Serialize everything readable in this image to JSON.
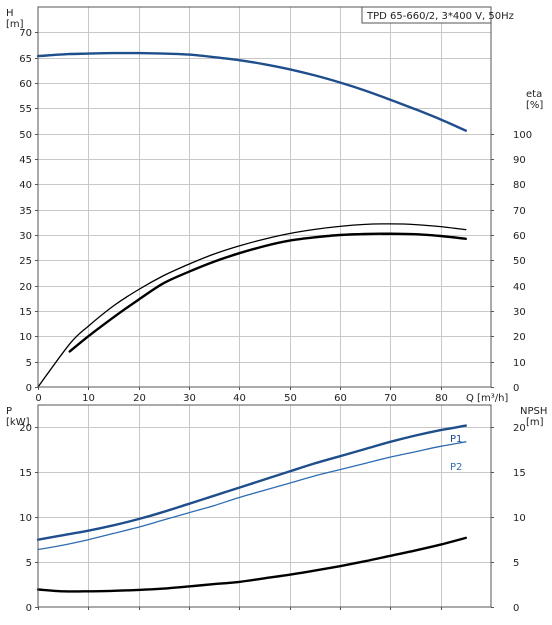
{
  "chart_data": [
    {
      "type": "line",
      "title": "TPD 65-660/2, 3*400 V, 50Hz",
      "xlabel": "Q [m³/h]",
      "ylabel_left": [
        "H",
        "[m]"
      ],
      "ylabel_right": [
        "eta",
        "[%]"
      ],
      "xlim": [
        0,
        90
      ],
      "x_ticks": [
        "0",
        "10",
        "20",
        "30",
        "40",
        "50",
        "60",
        "70",
        "80"
      ],
      "ylim_left": [
        0,
        75
      ],
      "y_ticks_left": [
        "0",
        "5",
        "10",
        "15",
        "20",
        "25",
        "30",
        "35",
        "40",
        "45",
        "50",
        "55",
        "60",
        "65",
        "70"
      ],
      "ylim_right": [
        0,
        150
      ],
      "y_ticks_right": [
        "0",
        "10",
        "20",
        "30",
        "40",
        "50",
        "60",
        "70",
        "80",
        "90",
        "100"
      ],
      "grid": true,
      "series": [
        {
          "color": "#1f4e8c",
          "axis": "left",
          "x": [
            0,
            6,
            10,
            15,
            20,
            25,
            30,
            35,
            40,
            45,
            50,
            55,
            60,
            65,
            70,
            75,
            80,
            85
          ],
          "y": [
            65.3,
            65.7,
            65.8,
            65.9,
            65.9,
            65.8,
            65.6,
            65.1,
            64.5,
            63.7,
            62.7,
            61.5,
            60.1,
            58.5,
            56.7,
            54.8,
            52.8,
            50.6
          ]
        },
        {
          "color": "#000000",
          "axis": "right",
          "x": [
            0,
            6.3,
            10,
            15,
            20,
            25,
            30,
            35,
            40,
            45,
            50,
            55,
            60,
            65,
            70,
            75,
            80,
            85
          ],
          "y": [
            0,
            17,
            24,
            32,
            38.5,
            44,
            48.5,
            52.5,
            55.7,
            58.4,
            60.6,
            62.2,
            63.4,
            64.2,
            64.4,
            64.1,
            63.3,
            62.1
          ]
        },
        {
          "color": "#000000",
          "axis": "right",
          "x": [
            6.3,
            10,
            15,
            20,
            25,
            30,
            35,
            40,
            45,
            50,
            55,
            60,
            65,
            70,
            75,
            80,
            85
          ],
          "y": [
            14,
            20,
            27.5,
            34.5,
            41,
            45.5,
            49.5,
            52.8,
            55.6,
            57.8,
            59.1,
            60,
            60.4,
            60.5,
            60.3,
            59.6,
            58.5
          ]
        }
      ]
    },
    {
      "type": "line",
      "ylabel_left": [
        "P",
        "[kW]"
      ],
      "ylabel_right": [
        "NPSH",
        "[m]"
      ],
      "xlim": [
        0,
        90
      ],
      "ylim_left": [
        0,
        22.5
      ],
      "y_ticks_left": [
        "0",
        "5",
        "10",
        "15",
        "20"
      ],
      "ylim_right": [
        0,
        22.5
      ],
      "y_ticks_right": [
        "0",
        "5",
        "10",
        "15",
        "20"
      ],
      "grid": true,
      "series": [
        {
          "name": "P1",
          "color": "#1f4e8c",
          "axis": "left",
          "x": [
            0,
            5,
            10,
            15,
            20,
            25,
            30,
            35,
            40,
            45,
            50,
            55,
            60,
            65,
            70,
            75,
            80,
            85
          ],
          "y": [
            7.5,
            8.0,
            8.5,
            9.1,
            9.8,
            10.6,
            11.5,
            12.4,
            13.3,
            14.2,
            15.1,
            16.0,
            16.8,
            17.6,
            18.4,
            19.1,
            19.7,
            20.2
          ]
        },
        {
          "name": "P2",
          "color": "#2e6db0",
          "axis": "left",
          "x": [
            0,
            5,
            10,
            15,
            20,
            25,
            30,
            35,
            40,
            45,
            50,
            55,
            60,
            65,
            70,
            75,
            80,
            85
          ],
          "y": [
            6.4,
            6.9,
            7.5,
            8.2,
            8.9,
            9.7,
            10.5,
            11.3,
            12.2,
            13.0,
            13.8,
            14.6,
            15.3,
            16.0,
            16.7,
            17.3,
            17.9,
            18.4
          ]
        },
        {
          "color": "#000000",
          "axis": "right",
          "x": [
            0,
            5,
            10,
            15,
            20,
            25,
            30,
            35,
            40,
            45,
            50,
            55,
            60,
            65,
            70,
            75,
            80,
            85
          ],
          "y": [
            1.95,
            1.75,
            1.75,
            1.8,
            1.9,
            2.05,
            2.3,
            2.55,
            2.8,
            3.2,
            3.6,
            4.05,
            4.55,
            5.1,
            5.7,
            6.3,
            6.95,
            7.7
          ]
        }
      ]
    }
  ]
}
